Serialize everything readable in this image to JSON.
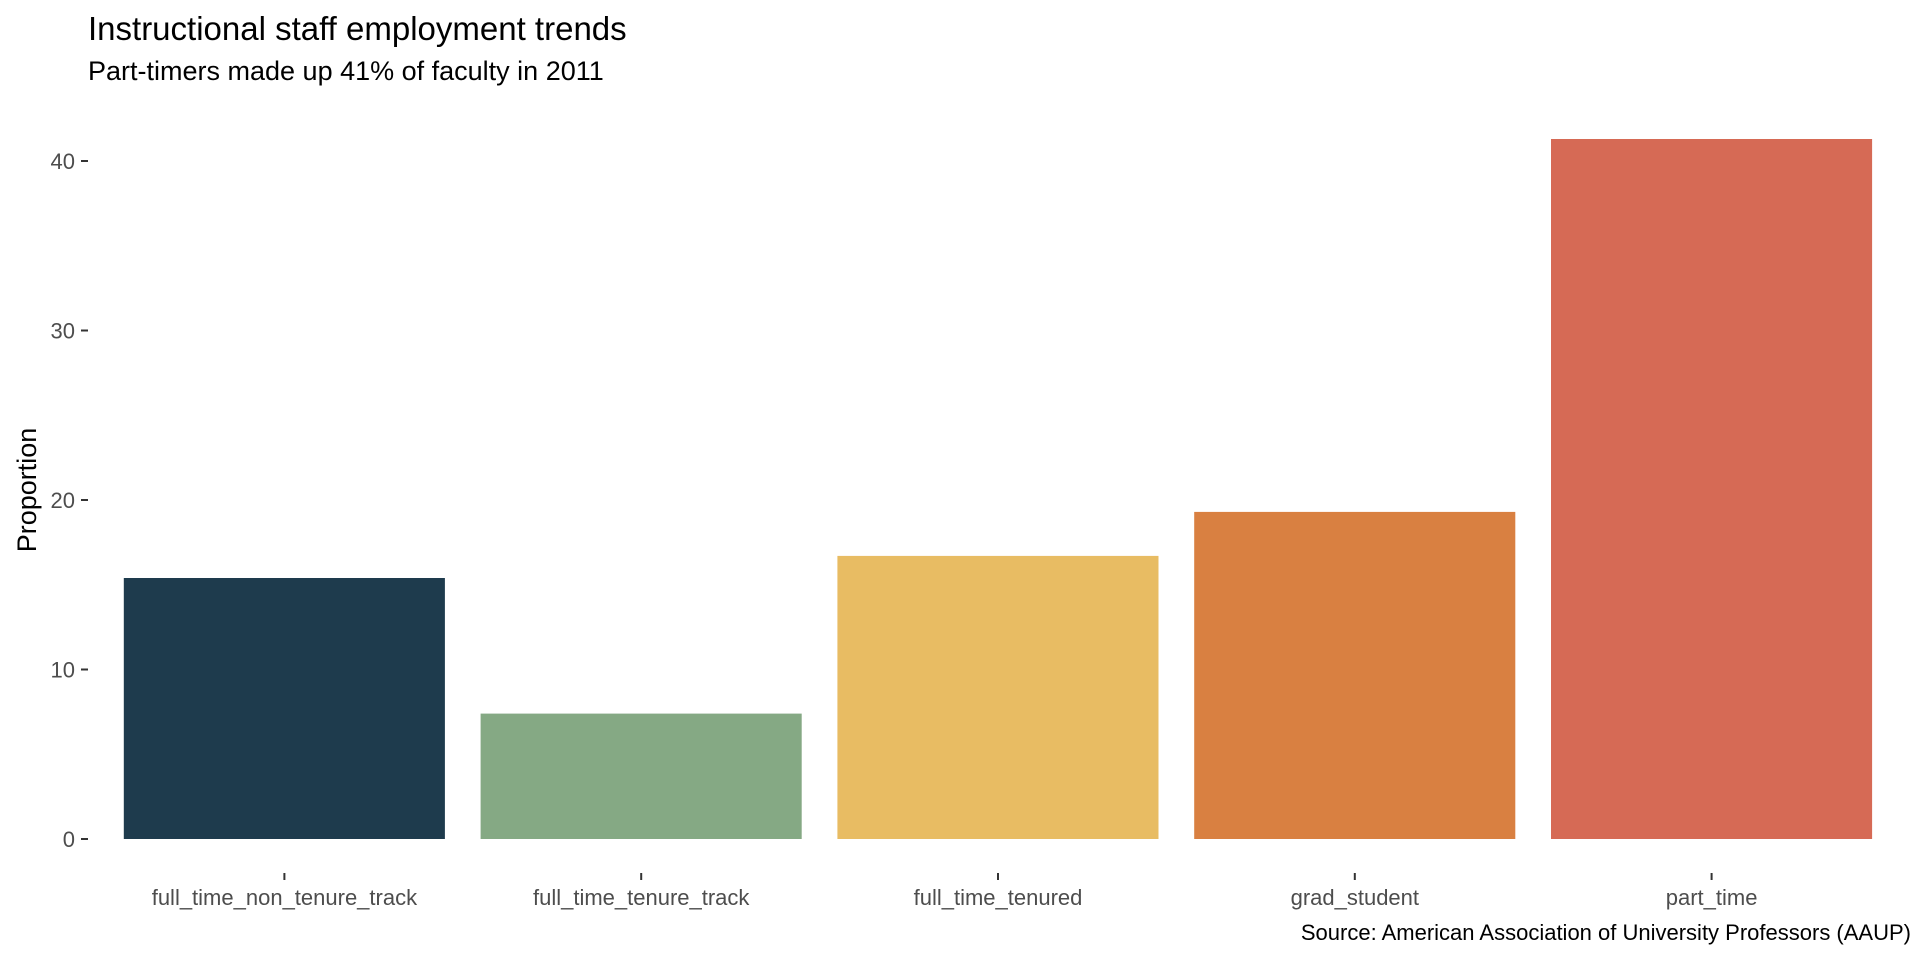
{
  "chart_data": {
    "type": "bar",
    "title": "Instructional staff employment trends",
    "subtitle": "Part-timers made up 41% of faculty in 2011",
    "caption": "Source: American Association of University Professors (AAUP)",
    "xlabel": "",
    "ylabel": "Proportion",
    "ylim": [
      0,
      42
    ],
    "yticks": [
      0,
      10,
      20,
      30,
      40
    ],
    "categories": [
      "full_time_non_tenure_track",
      "full_time_tenure_track",
      "full_time_tenured",
      "grad_student",
      "part_time"
    ],
    "values": [
      15.4,
      7.4,
      16.7,
      19.3,
      41.3
    ],
    "colors": [
      "#1e3b4d",
      "#85a984",
      "#e8bc63",
      "#d98041",
      "#d66a55"
    ],
    "grid": false,
    "legend": "none"
  }
}
